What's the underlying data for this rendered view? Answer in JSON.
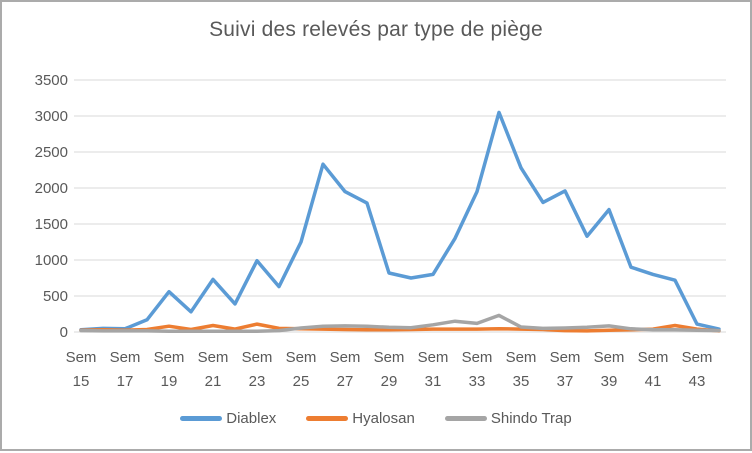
{
  "window": {
    "background": "#FFFFFF",
    "border_color": "#ABABAB"
  },
  "chart_data": {
    "type": "line",
    "title": "Suivi des relevés par type de piège",
    "xlabel": "",
    "ylabel": "",
    "x_categories": [
      15,
      16,
      17,
      18,
      19,
      20,
      21,
      22,
      23,
      24,
      25,
      26,
      27,
      28,
      29,
      30,
      31,
      32,
      33,
      34,
      35,
      36,
      37,
      38,
      39,
      40,
      41,
      42,
      43,
      44
    ],
    "x_tick_labels": [
      "Sem 15",
      "Sem 17",
      "Sem 19",
      "Sem 21",
      "Sem 23",
      "Sem 25",
      "Sem 27",
      "Sem 29",
      "Sem 31",
      "Sem 33",
      "Sem 35",
      "Sem 37",
      "Sem 39",
      "Sem 41",
      "Sem 43"
    ],
    "y_ticks": [
      0,
      500,
      1000,
      1500,
      2000,
      2500,
      3000,
      3500
    ],
    "ylim": [
      0,
      3500
    ],
    "grid": "horizontal",
    "legend_position": "bottom",
    "text_color": "#595959",
    "gridline_color": "#D9D9D9",
    "series": [
      {
        "name": "Diablex",
        "color": "#5B9BD5",
        "values": [
          30,
          50,
          45,
          170,
          560,
          280,
          730,
          390,
          990,
          630,
          1250,
          2330,
          1950,
          1790,
          820,
          750,
          800,
          1300,
          1950,
          3050,
          2280,
          1800,
          1960,
          1330,
          1700,
          900,
          800,
          720,
          110,
          40
        ]
      },
      {
        "name": "Hyalosan",
        "color": "#ED7D31",
        "values": [
          25,
          30,
          25,
          35,
          80,
          35,
          90,
          40,
          110,
          50,
          45,
          40,
          35,
          30,
          30,
          35,
          40,
          40,
          40,
          45,
          40,
          35,
          20,
          15,
          25,
          30,
          40,
          90,
          40,
          15
        ]
      },
      {
        "name": "Shindo Trap",
        "color": "#A5A5A5",
        "values": [
          20,
          15,
          15,
          15,
          10,
          10,
          10,
          10,
          10,
          20,
          55,
          80,
          85,
          80,
          65,
          60,
          100,
          150,
          120,
          230,
          70,
          50,
          55,
          65,
          85,
          45,
          30,
          30,
          25,
          20
        ]
      }
    ]
  }
}
